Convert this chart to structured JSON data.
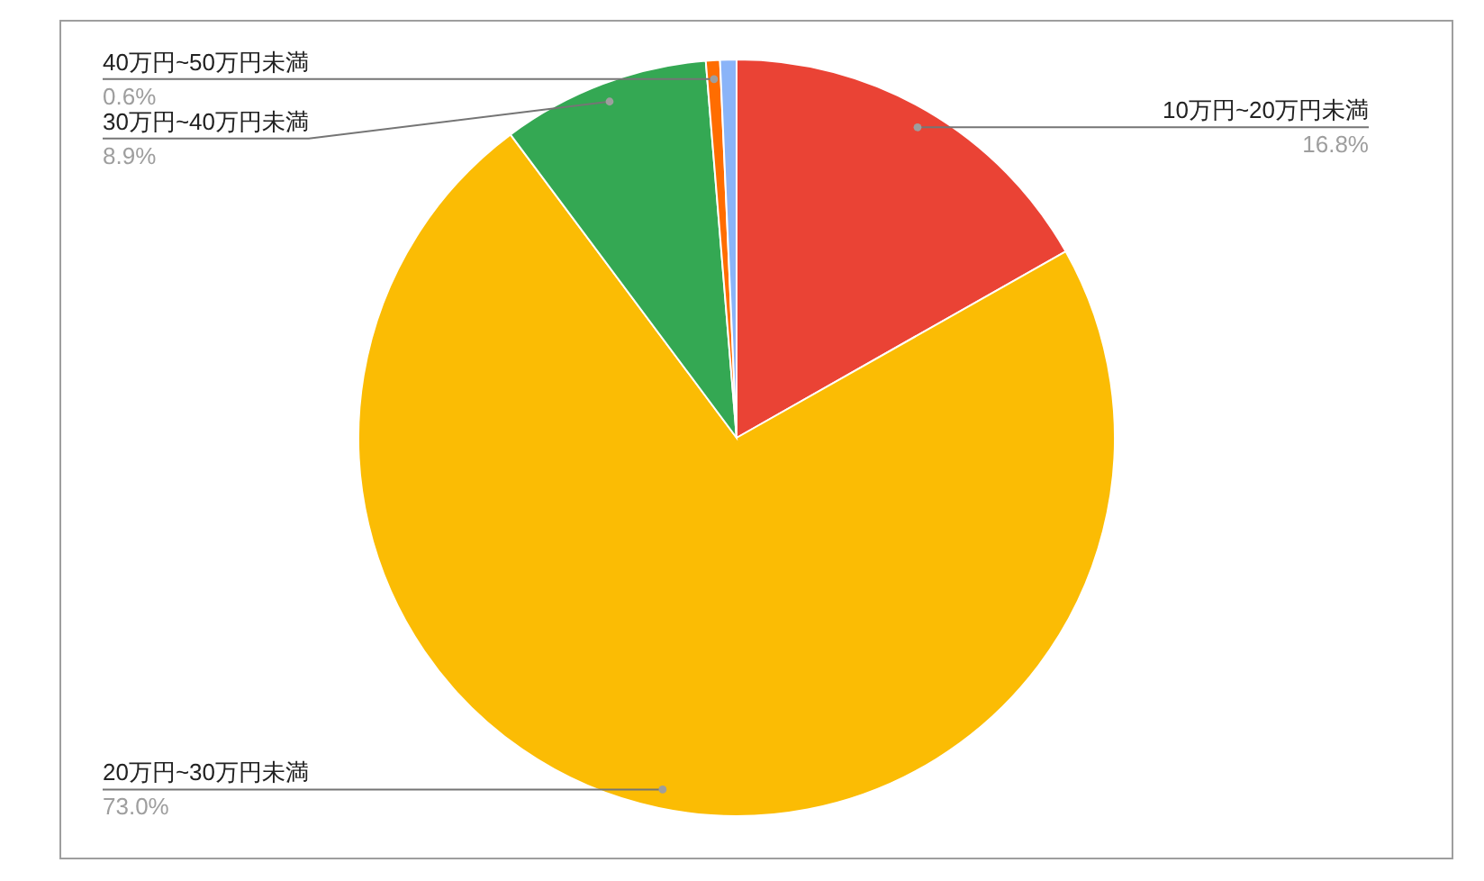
{
  "chart_data": {
    "type": "pie",
    "categories": [
      "10万円~20万円未満",
      "20万円~30万円未満",
      "30万円~40万円未満",
      "40万円~50万円未満",
      null
    ],
    "values": [
      16.8,
      73.0,
      8.9,
      0.6,
      0.7
    ],
    "colors": [
      "#ea4335",
      "#fbbc04",
      "#34a853",
      "#ff6d01",
      "#8ab4f8"
    ],
    "value_labels": [
      "16.8%",
      "73.0%",
      "8.9%",
      "0.6%",
      null
    ],
    "legend": false
  }
}
